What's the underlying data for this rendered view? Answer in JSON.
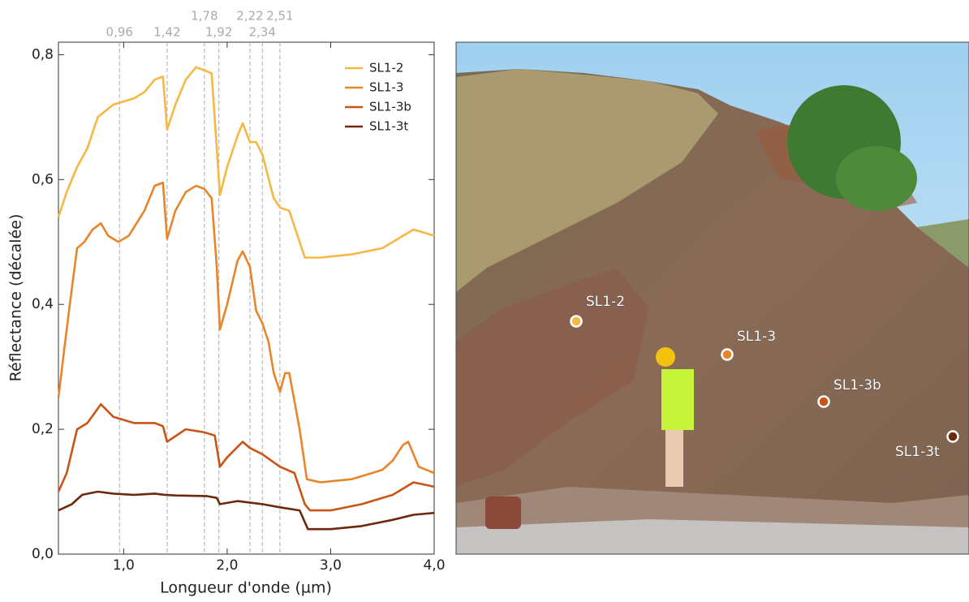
{
  "chart_data": {
    "type": "line",
    "xlabel": "Longueur d'onde (µm)",
    "ylabel": "Réflectance (décalée)",
    "xlim": [
      0.37,
      4.0
    ],
    "ylim": [
      0,
      0.82
    ],
    "xticks": [
      {
        "value": 1,
        "label": "1,0"
      },
      {
        "value": 2,
        "label": "2,0"
      },
      {
        "value": 3,
        "label": "3,0"
      },
      {
        "value": 4,
        "label": "4,0"
      }
    ],
    "yticks": [
      {
        "value": 0,
        "label": "0,0"
      },
      {
        "value": 0.2,
        "label": "0,2"
      },
      {
        "value": 0.4,
        "label": "0,4"
      },
      {
        "value": 0.6,
        "label": "0,6"
      },
      {
        "value": 0.8,
        "label": "0,8"
      }
    ],
    "vlines": [
      {
        "value": 0.96,
        "label": "0,96"
      },
      {
        "value": 1.42,
        "label": "1,42"
      },
      {
        "value": 1.78,
        "label": "1,78"
      },
      {
        "value": 1.92,
        "label": "1,92"
      },
      {
        "value": 2.22,
        "label": "2,22"
      },
      {
        "value": 2.34,
        "label": "2,34"
      },
      {
        "value": 2.51,
        "label": "2,51"
      }
    ],
    "legend": "upper right",
    "series": [
      {
        "name": "SL1-2",
        "color": "#f6b845",
        "x": [
          0.37,
          0.45,
          0.55,
          0.65,
          0.75,
          0.9,
          1.1,
          1.2,
          1.3,
          1.38,
          1.42,
          1.5,
          1.6,
          1.7,
          1.78,
          1.85,
          1.9,
          1.93,
          2.0,
          2.1,
          2.15,
          2.22,
          2.28,
          2.34,
          2.45,
          2.51,
          2.6,
          2.7,
          2.75,
          2.9,
          3.2,
          3.5,
          3.8,
          4.0
        ],
        "values": [
          0.54,
          0.58,
          0.62,
          0.65,
          0.7,
          0.72,
          0.73,
          0.74,
          0.76,
          0.765,
          0.68,
          0.72,
          0.76,
          0.78,
          0.775,
          0.77,
          0.65,
          0.575,
          0.62,
          0.67,
          0.69,
          0.66,
          0.66,
          0.64,
          0.57,
          0.555,
          0.55,
          0.5,
          0.475,
          0.475,
          0.48,
          0.49,
          0.52,
          0.51
        ]
      },
      {
        "name": "SL1-3",
        "color": "#e8852a",
        "x": [
          0.37,
          0.42,
          0.48,
          0.55,
          0.62,
          0.7,
          0.78,
          0.85,
          0.95,
          1.05,
          1.2,
          1.3,
          1.38,
          1.42,
          1.5,
          1.6,
          1.7,
          1.78,
          1.85,
          1.9,
          1.93,
          2.0,
          2.1,
          2.15,
          2.22,
          2.28,
          2.34,
          2.4,
          2.45,
          2.51,
          2.56,
          2.6,
          2.7,
          2.77,
          2.9,
          3.2,
          3.5,
          3.6,
          3.7,
          3.75,
          3.85,
          4.0
        ],
        "values": [
          0.25,
          0.32,
          0.4,
          0.49,
          0.5,
          0.52,
          0.53,
          0.51,
          0.5,
          0.51,
          0.55,
          0.59,
          0.595,
          0.505,
          0.55,
          0.58,
          0.59,
          0.585,
          0.57,
          0.46,
          0.36,
          0.4,
          0.47,
          0.485,
          0.46,
          0.39,
          0.37,
          0.34,
          0.29,
          0.26,
          0.29,
          0.29,
          0.2,
          0.12,
          0.115,
          0.12,
          0.135,
          0.15,
          0.175,
          0.18,
          0.14,
          0.13
        ]
      },
      {
        "name": "SL1-3b",
        "color": "#c95416",
        "x": [
          0.37,
          0.45,
          0.55,
          0.65,
          0.78,
          0.9,
          1.1,
          1.3,
          1.38,
          1.42,
          1.6,
          1.78,
          1.88,
          1.93,
          2.0,
          2.15,
          2.22,
          2.34,
          2.51,
          2.65,
          2.75,
          2.8,
          3.0,
          3.3,
          3.6,
          3.8,
          4.0
        ],
        "values": [
          0.1,
          0.13,
          0.2,
          0.21,
          0.24,
          0.22,
          0.21,
          0.21,
          0.205,
          0.18,
          0.2,
          0.195,
          0.19,
          0.14,
          0.155,
          0.18,
          0.17,
          0.16,
          0.14,
          0.13,
          0.08,
          0.07,
          0.07,
          0.08,
          0.095,
          0.115,
          0.108
        ]
      },
      {
        "name": "SL1-3t",
        "color": "#6b2a0c",
        "x": [
          0.37,
          0.5,
          0.6,
          0.75,
          0.9,
          1.1,
          1.3,
          1.4,
          1.5,
          1.8,
          1.9,
          1.93,
          2.1,
          2.34,
          2.51,
          2.7,
          2.78,
          3.0,
          3.3,
          3.6,
          3.8,
          4.0
        ],
        "values": [
          0.07,
          0.08,
          0.095,
          0.1,
          0.097,
          0.095,
          0.097,
          0.095,
          0.094,
          0.093,
          0.09,
          0.08,
          0.085,
          0.08,
          0.075,
          0.07,
          0.04,
          0.04,
          0.045,
          0.055,
          0.063,
          0.066
        ]
      }
    ]
  }
}
